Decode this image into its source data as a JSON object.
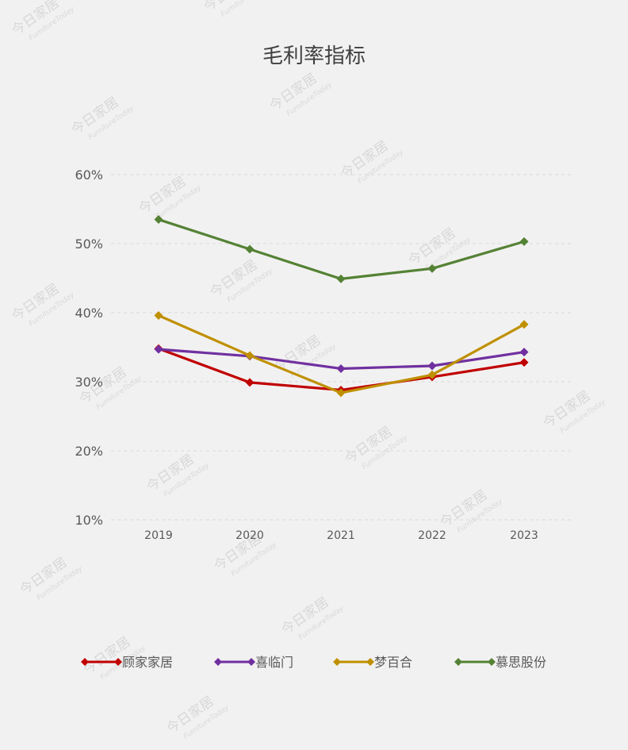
{
  "watermark": {
    "main": "今日家居",
    "sub": "FurnitureToday"
  },
  "chart_data": {
    "type": "line",
    "title": "毛利率指标",
    "categories": [
      "2019",
      "2020",
      "2021",
      "2022",
      "2023"
    ],
    "series": [
      {
        "name": "顾家家居",
        "color": "#c00000",
        "values": [
          34.8,
          29.9,
          28.8,
          30.7,
          32.8
        ]
      },
      {
        "name": "喜临门",
        "color": "#7030a0",
        "values": [
          34.7,
          33.7,
          31.9,
          32.3,
          34.3
        ]
      },
      {
        "name": "梦百合",
        "color": "#bf9000",
        "values": [
          39.6,
          33.8,
          28.4,
          31.0,
          38.3
        ]
      },
      {
        "name": "慕思股份",
        "color": "#548235",
        "values": [
          53.5,
          49.2,
          44.9,
          46.4,
          50.3
        ]
      }
    ],
    "y_ticks": [
      "10%",
      "20%",
      "30%",
      "40%",
      "50%",
      "60%"
    ],
    "ylim": [
      10,
      60
    ],
    "grid": true,
    "legend_position": "bottom",
    "marker": "diamond"
  }
}
